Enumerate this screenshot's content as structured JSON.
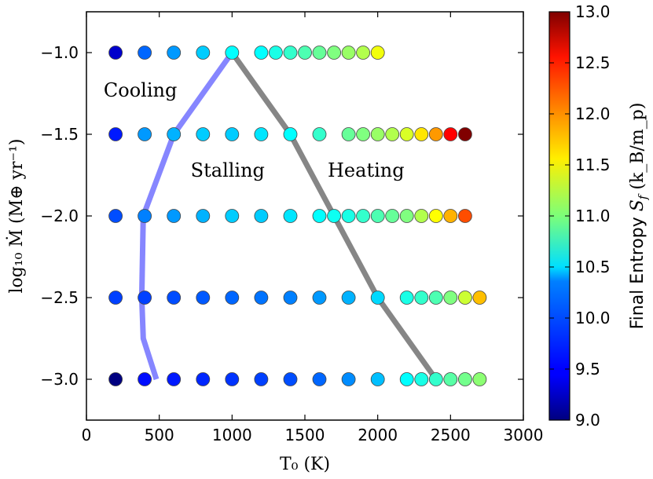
{
  "chart_data": {
    "type": "scatter",
    "xlabel": "T₀ (K)",
    "ylabel": "log₁₀ Ṁ (M⊕ yr⁻¹)",
    "xlim": [
      0,
      3000
    ],
    "ylim": [
      -3.25,
      -0.75
    ],
    "xticks": [
      0,
      500,
      1000,
      1500,
      2000,
      2500,
      3000
    ],
    "yticks": [
      -1.0,
      -1.5,
      -2.0,
      -2.5,
      -3.0
    ],
    "xtick_labels": [
      "0",
      "500",
      "1000",
      "1500",
      "2000",
      "2500",
      "3000"
    ],
    "ytick_labels": [
      "−1.0",
      "−1.5",
      "−2.0",
      "−2.5",
      "−3.0"
    ],
    "colorbar": {
      "label": "Final Entropy S_f (k_B/m_p)",
      "label_main": "Final Entropy ",
      "label_symbol": "S",
      "label_subscript": "f",
      "label_units": " (k_B/m_p)",
      "range": [
        9.0,
        13.0
      ],
      "ticks": [
        9.0,
        9.5,
        10.0,
        10.5,
        11.0,
        11.5,
        12.0,
        12.5,
        13.0
      ],
      "tick_labels": [
        "9.0",
        "9.5",
        "10.0",
        "10.5",
        "11.0",
        "11.5",
        "12.0",
        "12.5",
        "13.0"
      ],
      "colormap": "jet"
    },
    "series": [
      {
        "name": "logMdot = -1.0",
        "y": -1.0,
        "x": [
          200,
          400,
          600,
          800,
          1000,
          1200,
          1300,
          1400,
          1500,
          1600,
          1700,
          1800,
          1900,
          2000
        ],
        "entropy": [
          9.3,
          9.9,
          10.1,
          10.3,
          10.5,
          10.5,
          10.6,
          10.7,
          10.8,
          10.9,
          11.0,
          11.1,
          11.2,
          11.45
        ]
      },
      {
        "name": "logMdot = -1.5",
        "y": -1.5,
        "x": [
          200,
          400,
          600,
          800,
          1000,
          1200,
          1400,
          1600,
          1800,
          1900,
          2000,
          2100,
          2200,
          2300,
          2400,
          2500,
          2600
        ],
        "entropy": [
          9.6,
          10.1,
          10.2,
          10.3,
          10.3,
          10.4,
          10.5,
          10.7,
          10.9,
          11.0,
          11.1,
          11.2,
          11.35,
          11.6,
          11.9,
          12.5,
          13.0
        ]
      },
      {
        "name": "logMdot = -2.0",
        "y": -2.0,
        "x": [
          200,
          400,
          600,
          800,
          1000,
          1200,
          1400,
          1600,
          1700,
          1800,
          1900,
          2000,
          2100,
          2200,
          2300,
          2400,
          2500,
          2600
        ],
        "entropy": [
          9.8,
          10.0,
          10.1,
          10.2,
          10.3,
          10.3,
          10.4,
          10.5,
          10.55,
          10.6,
          10.7,
          10.8,
          10.9,
          11.0,
          11.2,
          11.5,
          11.8,
          12.2
        ]
      },
      {
        "name": "logMdot = -2.5",
        "y": -2.5,
        "x": [
          200,
          400,
          600,
          800,
          1000,
          1200,
          1400,
          1600,
          1800,
          2000,
          2200,
          2300,
          2400,
          2500,
          2600,
          2700
        ],
        "entropy": [
          9.75,
          9.75,
          9.8,
          9.85,
          9.9,
          9.95,
          10.0,
          10.1,
          10.2,
          10.35,
          10.6,
          10.7,
          10.8,
          11.0,
          11.3,
          11.75
        ]
      },
      {
        "name": "logMdot = -3.0",
        "y": -3.0,
        "x": [
          200,
          400,
          600,
          800,
          1000,
          1200,
          1400,
          1600,
          1800,
          2000,
          2200,
          2300,
          2400,
          2500,
          2600,
          2700
        ],
        "entropy": [
          9.0,
          9.55,
          9.6,
          9.65,
          9.7,
          9.75,
          9.8,
          9.9,
          10.05,
          10.25,
          10.5,
          10.6,
          10.7,
          10.85,
          10.95,
          11.05
        ]
      }
    ],
    "boundaries": [
      {
        "name": "cooling-stalling boundary",
        "color": "#7f7fff",
        "x": [
          1000,
          600,
          390,
          380,
          390,
          480
        ],
        "y": [
          -1.0,
          -1.5,
          -2.0,
          -2.5,
          -2.75,
          -3.0
        ]
      },
      {
        "name": "stalling-heating boundary",
        "color": "#7f7f7f",
        "x": [
          1000,
          1400,
          1700,
          2000,
          2400
        ],
        "y": [
          -1.0,
          -1.5,
          -2.0,
          -2.5,
          -3.0
        ]
      }
    ],
    "annotations": [
      {
        "name": "annotation-cooling",
        "text": "Cooling",
        "x": 370,
        "y": -1.27
      },
      {
        "name": "annotation-stalling",
        "text": "Stalling",
        "x": 970,
        "y": -1.76
      },
      {
        "name": "annotation-heating",
        "text": "Heating",
        "x": 1920,
        "y": -1.76
      }
    ]
  }
}
